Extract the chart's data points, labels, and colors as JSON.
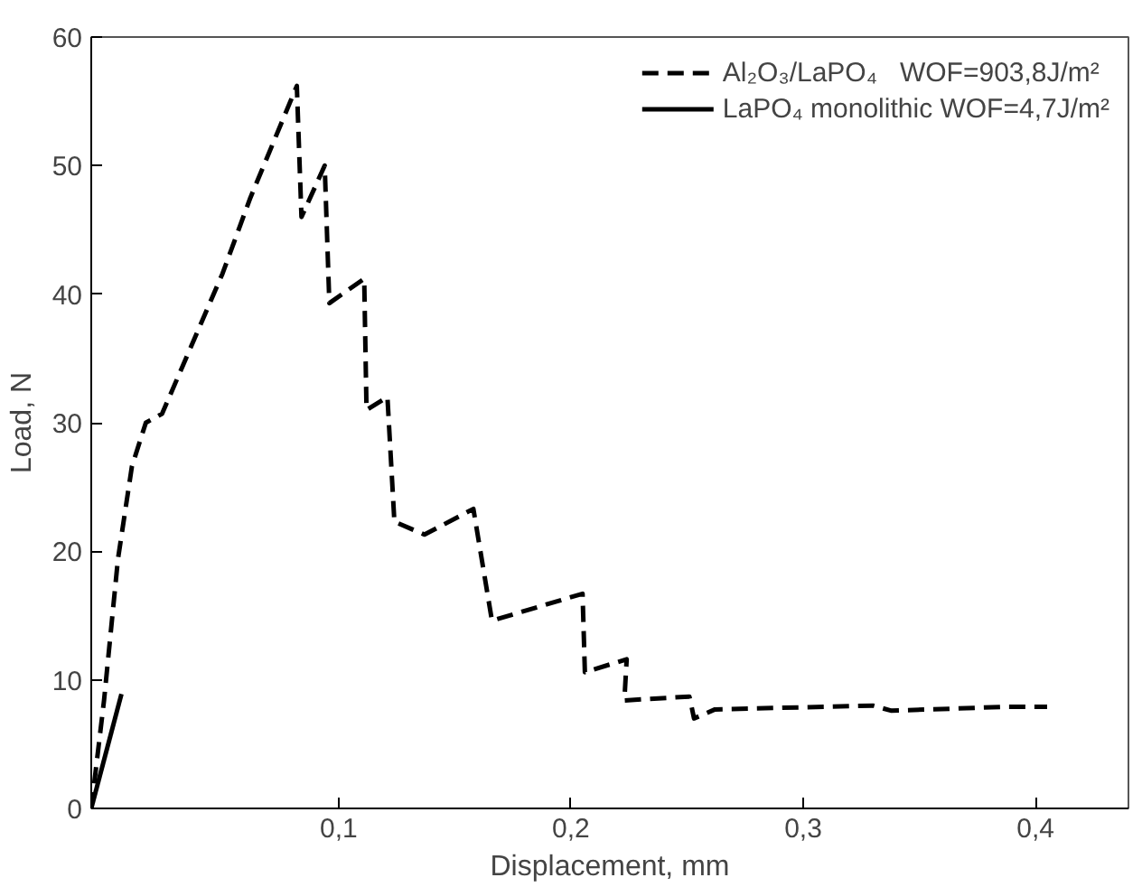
{
  "chart_data": {
    "type": "line",
    "xlabel": "Displacement, mm",
    "ylabel": "Load, N",
    "xlim": [
      -0.0065,
      0.44
    ],
    "ylim": [
      0,
      60
    ],
    "xticks": [
      {
        "value": 0.1,
        "label": "0,1"
      },
      {
        "value": 0.2,
        "label": "0,2"
      },
      {
        "value": 0.3,
        "label": "0,3"
      },
      {
        "value": 0.4,
        "label": "0,4"
      }
    ],
    "yticks": [
      0,
      10,
      20,
      30,
      40,
      50,
      60
    ],
    "legend": "top right",
    "grid": false,
    "marker": "none",
    "series": [
      {
        "name": "Al₂O₃/LaPO₄   WOF=903,8J/m²",
        "color": "#000000",
        "line_style": "dashed",
        "x": [
          -0.0065,
          -0.001,
          0.005,
          0.011,
          0.017,
          0.024,
          0.05,
          0.062,
          0.082,
          0.084,
          0.094,
          0.096,
          0.111,
          0.112,
          0.121,
          0.124,
          0.137,
          0.158,
          0.166,
          0.205,
          0.206,
          0.224,
          0.223,
          0.251,
          0.253,
          0.262,
          0.33,
          0.338,
          0.387,
          0.405
        ],
        "values": [
          0,
          8.4,
          19.4,
          26.6,
          30,
          30.7,
          41.6,
          47.5,
          56.2,
          46,
          50,
          39.3,
          41.2,
          31,
          32,
          22.3,
          21.3,
          23.3,
          14.6,
          16.7,
          10.6,
          11.6,
          8.4,
          8.7,
          7.0,
          7.7,
          8.0,
          7.6,
          7.9,
          7.9
        ]
      },
      {
        "name": "LaPO₄ monolithic WOF=4,7J/m²",
        "color": "#000000",
        "line_style": "solid",
        "x": [
          -0.0065,
          0.0065
        ],
        "values": [
          0,
          8.9
        ]
      }
    ]
  }
}
